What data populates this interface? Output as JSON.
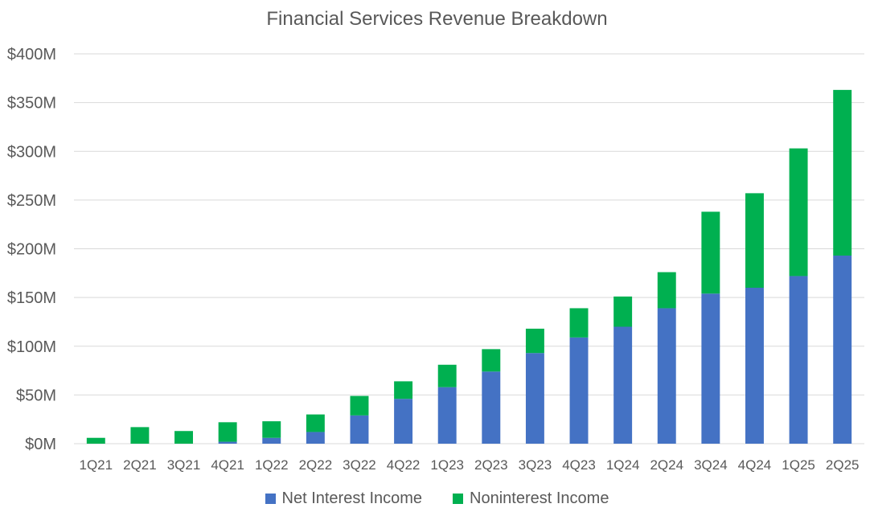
{
  "chart_data": {
    "type": "bar",
    "stacked": true,
    "title": "Financial Services Revenue Breakdown",
    "xlabel": "",
    "ylabel": "",
    "ylim": [
      0,
      400
    ],
    "y_unit": "$M",
    "y_ticks": [
      "$0M",
      "$50M",
      "$100M",
      "$150M",
      "$200M",
      "$250M",
      "$300M",
      "$350M",
      "$400M"
    ],
    "y_tick_values": [
      0,
      50,
      100,
      150,
      200,
      250,
      300,
      350,
      400
    ],
    "grid": true,
    "legend_position": "bottom",
    "categories": [
      "1Q21",
      "2Q21",
      "3Q21",
      "4Q21",
      "1Q22",
      "2Q22",
      "3Q22",
      "4Q22",
      "1Q23",
      "2Q23",
      "3Q23",
      "4Q23",
      "1Q24",
      "2Q24",
      "3Q24",
      "4Q24",
      "1Q25",
      "2Q25"
    ],
    "series": [
      {
        "name": "Net Interest Income",
        "color": "#4472C4",
        "values": [
          0,
          0,
          0,
          2,
          6,
          12,
          29,
          46,
          58,
          74,
          93,
          109,
          120,
          139,
          154,
          160,
          172,
          193
        ]
      },
      {
        "name": "Noninterest Income",
        "color": "#00B050",
        "values": [
          6,
          17,
          13,
          20,
          17,
          18,
          20,
          18,
          23,
          23,
          25,
          30,
          31,
          37,
          84,
          97,
          131,
          170
        ]
      }
    ]
  }
}
